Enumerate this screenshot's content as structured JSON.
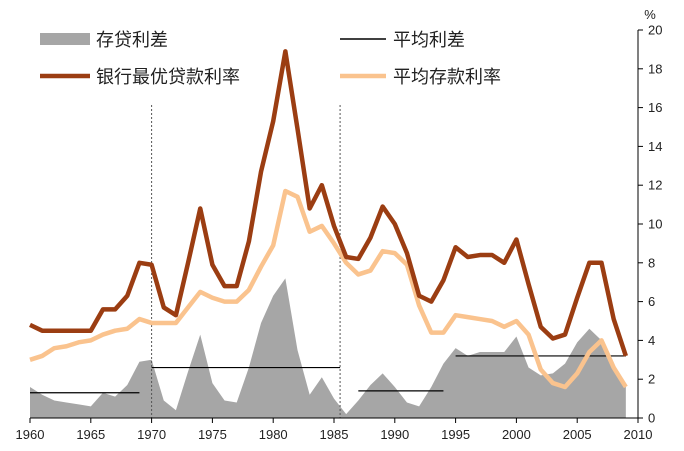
{
  "chart_data": {
    "type": "line",
    "title": "",
    "xlabel": "",
    "ylabel": "",
    "unit_label": "%",
    "xlim": [
      1960,
      2010
    ],
    "ylim": [
      0,
      20
    ],
    "x_ticks": [
      "1960",
      "1965",
      "1970",
      "1975",
      "1980",
      "1985",
      "1990",
      "1995",
      "2000",
      "2005",
      "2010"
    ],
    "y_ticks": [
      "0",
      "2",
      "4",
      "6",
      "8",
      "10",
      "12",
      "14",
      "16",
      "18",
      "20"
    ],
    "y_axis_side": "right",
    "grid": false,
    "vertical_markers": [
      1970,
      1985.5
    ],
    "colors": {
      "spread_area": "#a6a6a6",
      "prime_rate": "#9b3d12",
      "deposit_rate": "#fac38e",
      "average_spread": "#000000"
    },
    "legend": {
      "placement": "top",
      "items": [
        {
          "key": "spread",
          "label": "存贷利差",
          "style": "area"
        },
        {
          "key": "avg",
          "label": "平均利差",
          "style": "thin-line"
        },
        {
          "key": "prime",
          "label": "银行最优贷款利率",
          "style": "thick-line"
        },
        {
          "key": "deposit",
          "label": "平均存款利率",
          "style": "thick-line"
        }
      ]
    },
    "x": [
      1960,
      1961,
      1962,
      1963,
      1964,
      1965,
      1966,
      1967,
      1968,
      1969,
      1970,
      1971,
      1972,
      1973,
      1974,
      1975,
      1976,
      1977,
      1978,
      1979,
      1980,
      1981,
      1982,
      1983,
      1984,
      1985,
      1986,
      1987,
      1988,
      1989,
      1990,
      1991,
      1992,
      1993,
      1994,
      1995,
      1996,
      1997,
      1998,
      1999,
      2000,
      2001,
      2002,
      2003,
      2004,
      2005,
      2006,
      2007,
      2008,
      2009
    ],
    "series": [
      {
        "name": "银行最优贷款利率",
        "values": [
          4.8,
          4.5,
          4.5,
          4.5,
          4.5,
          4.5,
          5.6,
          5.6,
          6.3,
          8.0,
          7.9,
          5.7,
          5.3,
          8.0,
          10.8,
          7.9,
          6.8,
          6.8,
          9.1,
          12.7,
          15.3,
          18.9,
          14.9,
          10.8,
          12.0,
          9.9,
          8.3,
          8.2,
          9.3,
          10.9,
          10.0,
          8.5,
          6.3,
          6.0,
          7.1,
          8.8,
          8.3,
          8.4,
          8.4,
          8.0,
          9.2,
          6.9,
          4.7,
          4.1,
          4.3,
          6.2,
          8.0,
          8.0,
          5.1,
          3.2
        ]
      },
      {
        "name": "平均存款利率",
        "values": [
          3.0,
          3.2,
          3.6,
          3.7,
          3.9,
          4.0,
          4.3,
          4.5,
          4.6,
          5.1,
          4.9,
          4.9,
          4.9,
          5.7,
          6.5,
          6.2,
          6.0,
          6.0,
          6.6,
          7.8,
          8.9,
          11.7,
          11.4,
          9.6,
          9.9,
          9.0,
          8.0,
          7.4,
          7.6,
          8.6,
          8.5,
          7.9,
          5.8,
          4.4,
          4.4,
          5.3,
          5.2,
          5.1,
          5.0,
          4.7,
          5.0,
          4.3,
          2.5,
          1.8,
          1.6,
          2.3,
          3.4,
          4.0,
          2.6,
          1.6
        ]
      },
      {
        "name": "存贷利差",
        "values": [
          1.6,
          1.2,
          0.9,
          0.8,
          0.7,
          0.6,
          1.3,
          1.1,
          1.7,
          2.9,
          3.0,
          0.9,
          0.4,
          2.4,
          4.3,
          1.8,
          0.9,
          0.8,
          2.6,
          4.9,
          6.3,
          7.2,
          3.5,
          1.2,
          2.1,
          1.0,
          0.2,
          0.9,
          1.7,
          2.3,
          1.6,
          0.8,
          0.6,
          1.6,
          2.8,
          3.6,
          3.2,
          3.4,
          3.4,
          3.4,
          4.2,
          2.6,
          2.2,
          2.3,
          2.8,
          3.9,
          4.6,
          4.0,
          2.6,
          1.6
        ]
      }
    ],
    "average_spread_segments": [
      {
        "x_start": 1960,
        "x_end": 1969,
        "value": 1.3
      },
      {
        "x_start": 1970,
        "x_end": 1985.5,
        "value": 2.6
      },
      {
        "x_start": 1987,
        "x_end": 1994,
        "value": 1.4
      },
      {
        "x_start": 1995,
        "x_end": 2009,
        "value": 3.2
      }
    ]
  }
}
